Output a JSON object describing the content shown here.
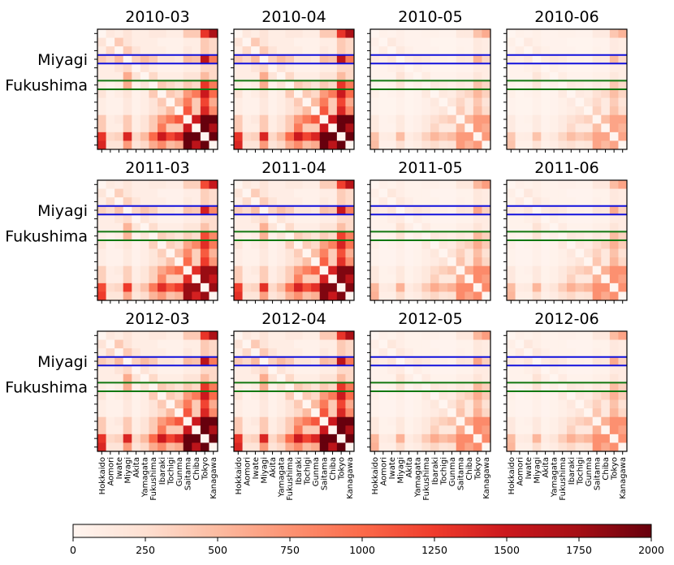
{
  "chart_data": {
    "type": "heatmap",
    "colormap": "Reds",
    "colorbar": {
      "min": 0,
      "max": 2000,
      "ticks": [
        0,
        250,
        500,
        750,
        1000,
        1250,
        1500,
        1750,
        2000
      ]
    },
    "prefectures": [
      "Hokkaido",
      "Aomori",
      "Iwate",
      "Miyagi",
      "Akita",
      "Yamagata",
      "Fukushima",
      "Ibaraki",
      "Tochigi",
      "Gunma",
      "Saitama",
      "Chiba",
      "Tokyo",
      "Kanagawa"
    ],
    "tick_labels_y": [
      "Miyagi",
      "Fukushima"
    ],
    "highlights": [
      {
        "label": "Miyagi",
        "index": 3,
        "color": "#1111dd"
      },
      {
        "label": "Fukushima",
        "index": 6,
        "color": "#117711"
      }
    ],
    "panels": [
      {
        "title": "2010-03",
        "scale": 1.0
      },
      {
        "title": "2010-04",
        "scale": 1.0
      },
      {
        "title": "2010-05",
        "scale": 0.35
      },
      {
        "title": "2010-06",
        "scale": 0.32
      },
      {
        "title": "2011-03",
        "scale": 0.9
      },
      {
        "title": "2011-04",
        "scale": 0.95
      },
      {
        "title": "2011-05",
        "scale": 0.4
      },
      {
        "title": "2011-06",
        "scale": 0.38
      },
      {
        "title": "2012-03",
        "scale": 1.0
      },
      {
        "title": "2012-04",
        "scale": 1.0
      },
      {
        "title": "2012-05",
        "scale": 0.4
      },
      {
        "title": "2012-06",
        "scale": 0.38
      }
    ],
    "base_matrix": [
      [
        0,
        150,
        100,
        200,
        100,
        100,
        150,
        150,
        100,
        100,
        400,
        400,
        1300,
        1700
      ],
      [
        200,
        0,
        400,
        200,
        100,
        100,
        100,
        50,
        50,
        50,
        100,
        100,
        400,
        300
      ],
      [
        100,
        300,
        0,
        400,
        200,
        100,
        100,
        100,
        50,
        50,
        150,
        100,
        400,
        300
      ],
      [
        400,
        300,
        500,
        0,
        350,
        500,
        400,
        200,
        200,
        150,
        500,
        450,
        1600,
        900
      ],
      [
        100,
        100,
        200,
        300,
        0,
        200,
        100,
        50,
        50,
        50,
        100,
        100,
        300,
        300
      ],
      [
        100,
        100,
        100,
        600,
        200,
        0,
        300,
        100,
        100,
        100,
        200,
        200,
        500,
        300
      ],
      [
        100,
        50,
        100,
        600,
        50,
        200,
        0,
        400,
        300,
        200,
        400,
        300,
        1300,
        900
      ],
      [
        200,
        50,
        100,
        200,
        50,
        100,
        400,
        0,
        400,
        300,
        700,
        900,
        1500,
        1000
      ],
      [
        100,
        50,
        50,
        150,
        50,
        100,
        200,
        400,
        0,
        500,
        900,
        400,
        1200,
        600
      ],
      [
        100,
        50,
        50,
        150,
        50,
        100,
        200,
        300,
        500,
        0,
        1100,
        400,
        1400,
        800
      ],
      [
        400,
        100,
        150,
        400,
        100,
        200,
        400,
        700,
        900,
        1100,
        0,
        1500,
        2000,
        2000
      ],
      [
        400,
        100,
        100,
        400,
        100,
        200,
        400,
        900,
        400,
        400,
        1500,
        0,
        2000,
        1700
      ],
      [
        1300,
        300,
        350,
        1400,
        300,
        500,
        1000,
        1500,
        1200,
        1400,
        2000,
        2000,
        0,
        2000
      ],
      [
        1400,
        200,
        200,
        700,
        200,
        300,
        600,
        800,
        500,
        600,
        2000,
        1600,
        2000,
        0
      ]
    ]
  }
}
